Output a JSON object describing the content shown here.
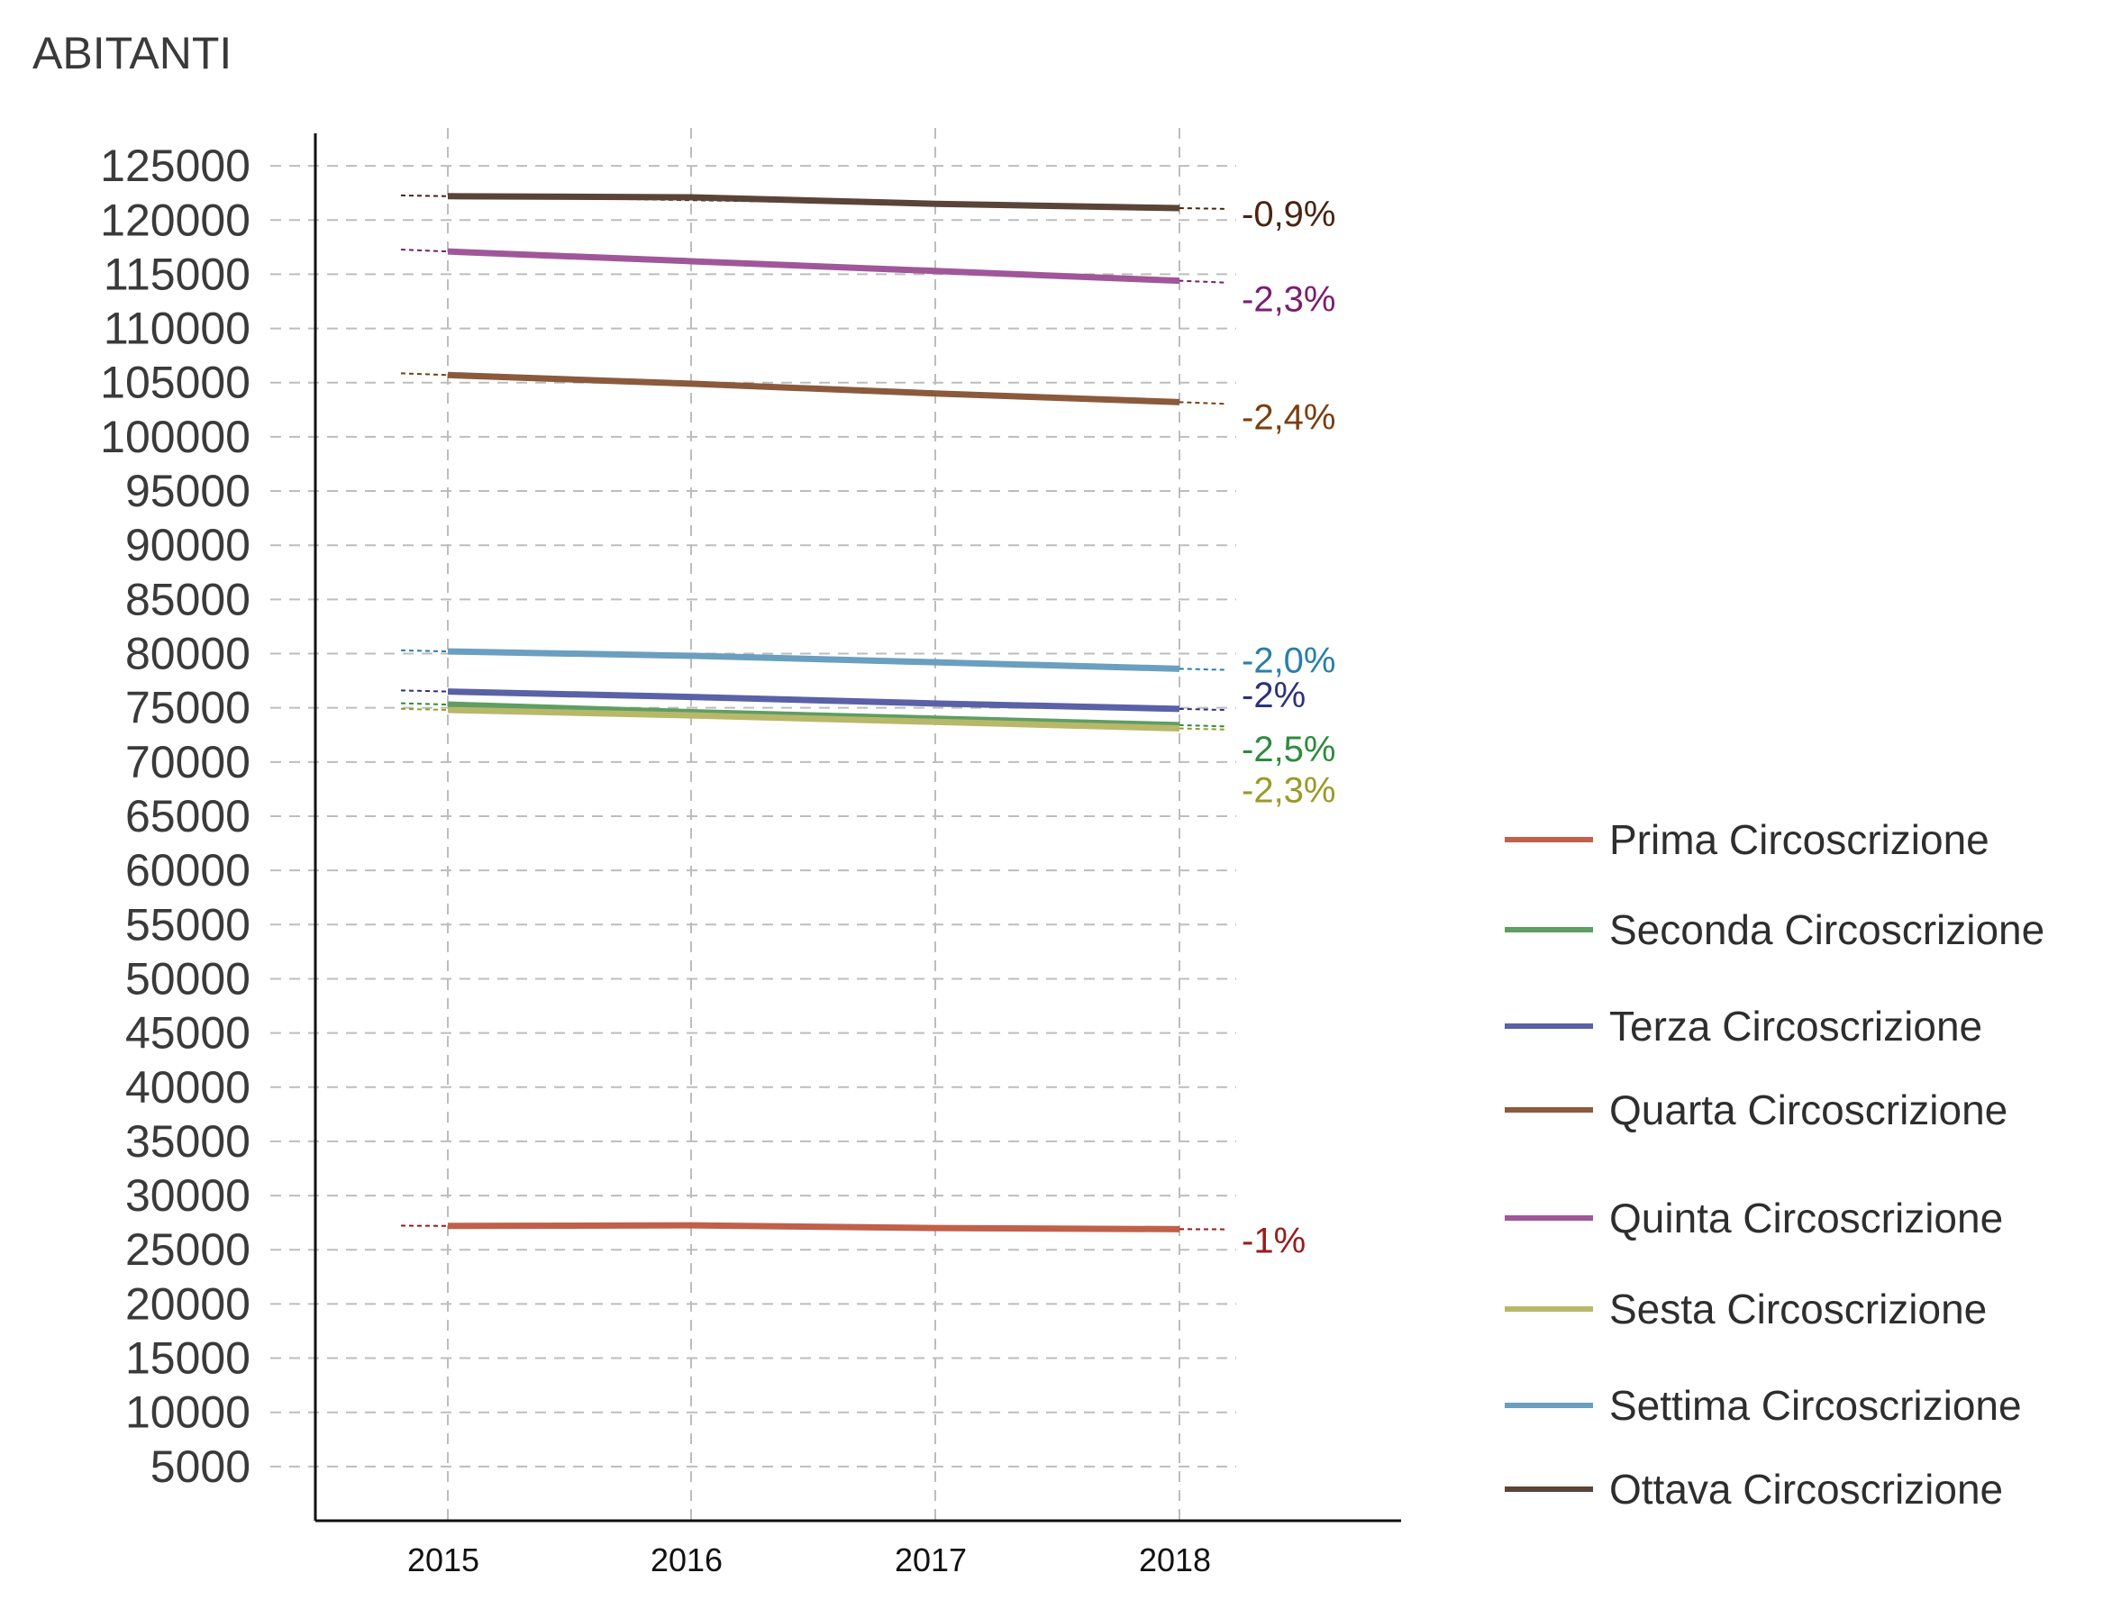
{
  "chart_data": {
    "type": "line",
    "title": "",
    "ylabel": "ABITANTI",
    "xlabel": "",
    "x": [
      "2015",
      "2016",
      "2017",
      "2018"
    ],
    "ylim": [
      0,
      128000
    ],
    "yticks": [
      5000,
      10000,
      15000,
      20000,
      25000,
      30000,
      35000,
      40000,
      45000,
      50000,
      55000,
      60000,
      65000,
      70000,
      75000,
      80000,
      85000,
      90000,
      95000,
      100000,
      105000,
      110000,
      115000,
      120000,
      125000
    ],
    "grid": true,
    "legend_position": "right",
    "series": [
      {
        "name": "Prima Circoscrizione",
        "color": "#c0604a",
        "label_color": "#9b1b1b",
        "change_label": "-1%",
        "values": [
          27200,
          27250,
          27000,
          26900
        ]
      },
      {
        "name": "Seconda Circoscrizione",
        "color": "#5e9e63",
        "label_color": "#2e8b3d",
        "change_label": "-2,5%",
        "values": [
          75300,
          74600,
          74000,
          73400
        ]
      },
      {
        "name": "Terza Circoscrizione",
        "color": "#5a61a6",
        "label_color": "#2e327a",
        "change_label": "-2%",
        "values": [
          76500,
          76000,
          75400,
          74900
        ]
      },
      {
        "name": "Quarta Circoscrizione",
        "color": "#8b5a3c",
        "label_color": "#7a3f10",
        "change_label": "-2,4%",
        "values": [
          105700,
          104900,
          104000,
          103200
        ]
      },
      {
        "name": "Quinta Circoscrizione",
        "color": "#a0579a",
        "label_color": "#7a1f6e",
        "change_label": "-2,3%",
        "values": [
          117100,
          116200,
          115300,
          114400
        ]
      },
      {
        "name": "Sesta Circoscrizione",
        "color": "#b8b86a",
        "label_color": "#9a9a2a",
        "change_label": "-2,3%",
        "values": [
          74800,
          74300,
          73700,
          73100
        ]
      },
      {
        "name": "Settima Circoscrizione",
        "color": "#6a9fbf",
        "label_color": "#2a7fa8",
        "change_label": "-2,0%",
        "values": [
          80200,
          79800,
          79200,
          78600
        ]
      },
      {
        "name": "Ottava Circoscrizione",
        "color": "#5a4438",
        "label_color": "#4a2410",
        "change_label": "-0,9%",
        "values": [
          122200,
          122100,
          121500,
          121100
        ]
      }
    ]
  }
}
